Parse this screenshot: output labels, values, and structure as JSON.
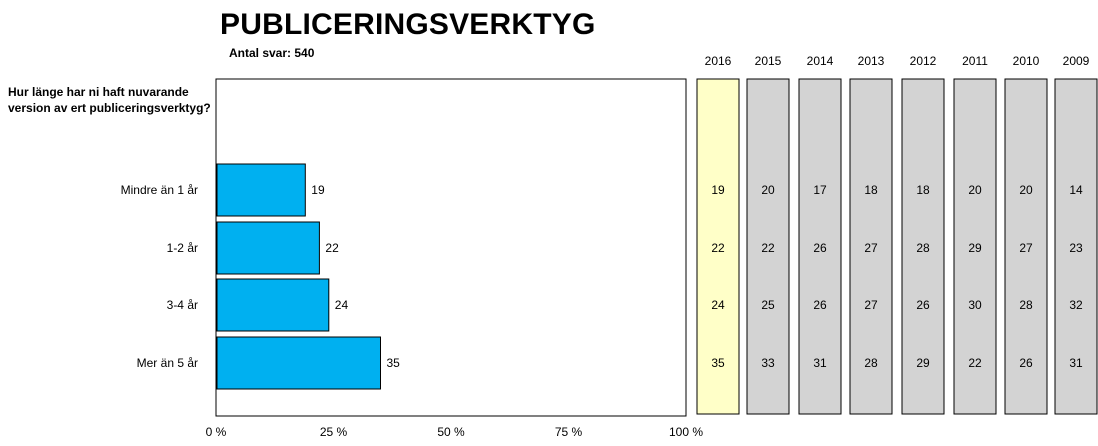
{
  "header": {
    "title": "PUBLICERINGSVERKTYG",
    "subtitle": "Antal svar: 540"
  },
  "question": "Hur länge har ni haft nuvarande version av ert publiceringsverktyg?",
  "colors": {
    "bar": "#00b0f0",
    "current_year_column": "#ffffc8",
    "past_year_column": "#d3d3d3"
  },
  "chart_data": {
    "type": "bar",
    "orientation": "horizontal",
    "title": "PUBLICERINGSVERKTYG",
    "subtitle": "Antal svar: 540",
    "question": "Hur länge har ni haft nuvarande version av ert publiceringsverktyg?",
    "categories": [
      "Mindre än 1 år",
      "1-2 år",
      "3-4 år",
      "Mer än 5 år"
    ],
    "values": [
      19,
      22,
      24,
      35
    ],
    "xlim": [
      0,
      100
    ],
    "x_ticks": [
      "0 %",
      "25 %",
      "50 %",
      "75 %",
      "100 %"
    ],
    "grid": false,
    "history_table": {
      "years": [
        "2016",
        "2015",
        "2014",
        "2013",
        "2012",
        "2011",
        "2010",
        "2009"
      ],
      "rows": [
        [
          19,
          20,
          17,
          18,
          18,
          20,
          20,
          14
        ],
        [
          22,
          22,
          26,
          27,
          28,
          29,
          27,
          23
        ],
        [
          24,
          25,
          26,
          27,
          26,
          30,
          28,
          32
        ],
        [
          35,
          33,
          31,
          28,
          29,
          22,
          26,
          31
        ]
      ]
    }
  }
}
